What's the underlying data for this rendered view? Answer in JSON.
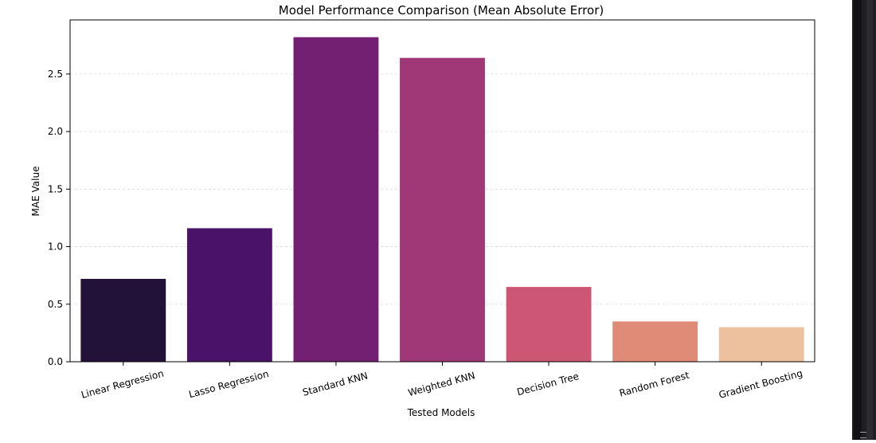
{
  "chart_data": {
    "type": "bar",
    "title": "Model Performance Comparison (Mean Absolute Error)",
    "xlabel": "Tested Models",
    "ylabel": "MAE Value",
    "categories": [
      "Linear Regression",
      "Lasso Regression",
      "Standard KNN",
      "Weighted KNN",
      "Decision Tree",
      "Random Forest",
      "Gradient Boosting"
    ],
    "values": [
      0.72,
      1.16,
      2.82,
      2.64,
      0.65,
      0.35,
      0.3
    ],
    "colors": [
      "#221239",
      "#4a1269",
      "#732073",
      "#a03776",
      "#cc5673",
      "#e08a78",
      "#edc19d"
    ],
    "ylim": [
      0,
      2.97
    ],
    "yticks": [
      0.0,
      0.5,
      1.0,
      1.5,
      2.0,
      2.5
    ],
    "ytick_labels": [
      "0.0",
      "0.5",
      "1.0",
      "1.5",
      "2.0",
      "2.5"
    ],
    "grid": "y-dashed",
    "xtick_rotation": "-15deg"
  }
}
